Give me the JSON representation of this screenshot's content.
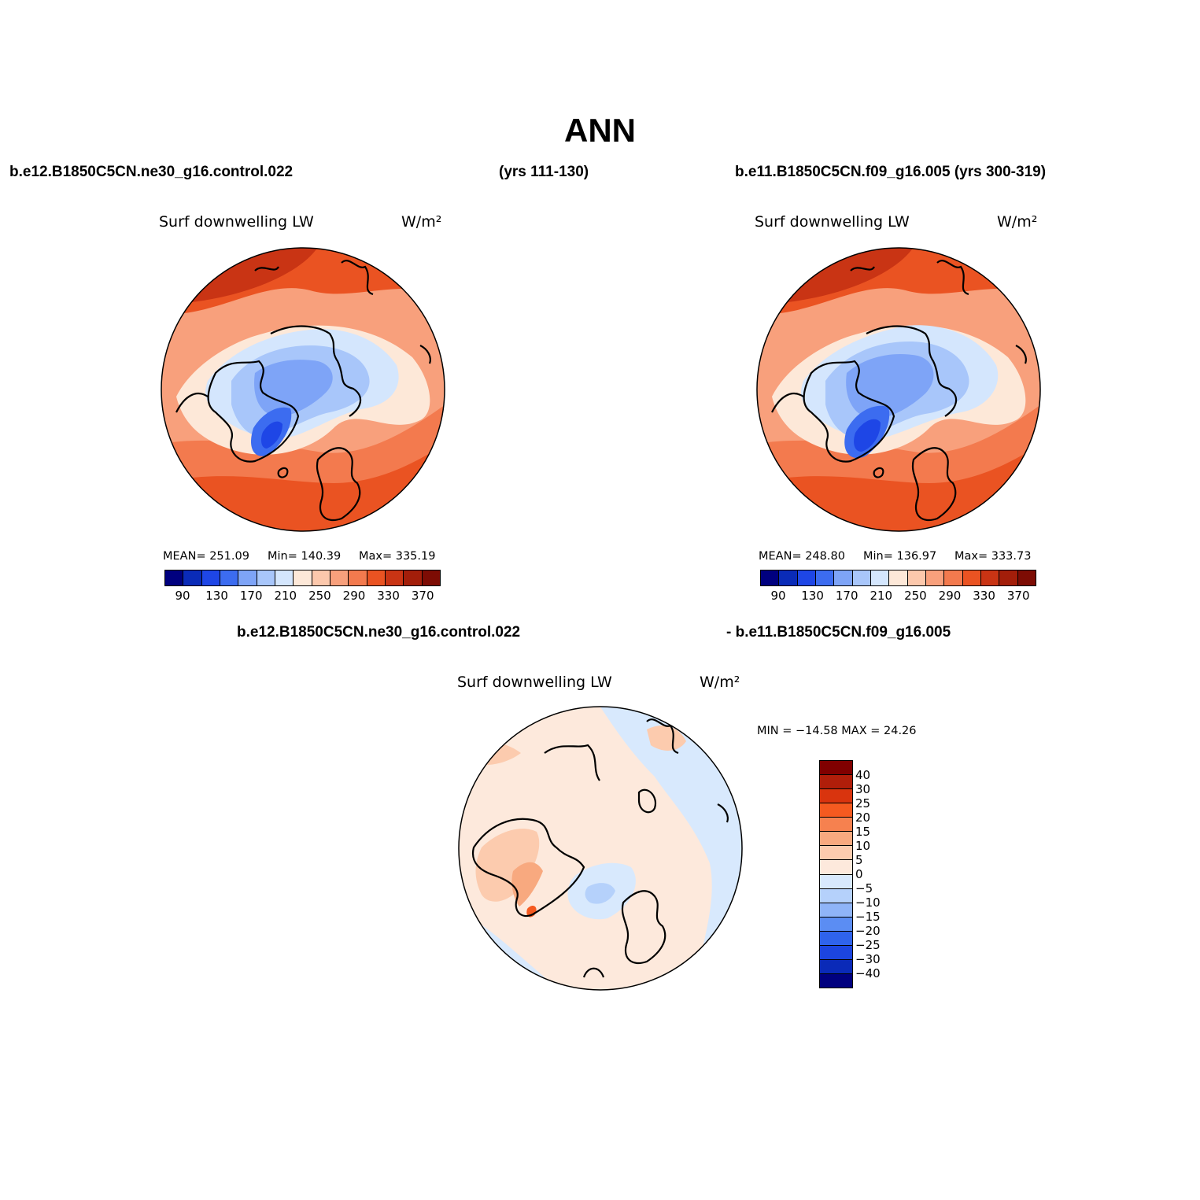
{
  "title": "ANN",
  "case1": "b.e12.B1850C5CN.ne30_g16.control.022",
  "case1_years": "(yrs 111-130)",
  "case2": "b.e11.B1850C5CN.f09_g16.005 (yrs 300-319)",
  "diff_case1": "b.e12.B1850C5CN.ne30_g16.control.022",
  "diff_case2": "- b.e11.B1850C5CN.f09_g16.005",
  "variable": "Surf downwelling LW",
  "units": "W/m²",
  "panel1": {
    "mean": "MEAN= 251.09",
    "min": "Min= 140.39",
    "max": "Max= 335.19"
  },
  "panel2": {
    "mean": "MEAN= 248.80",
    "min": "Min= 136.97",
    "max": "Max= 333.73"
  },
  "diff": {
    "minmax": "MIN = −14.58 MAX =  24.26"
  },
  "abs_colorbar": {
    "colors": [
      "#00007f",
      "#0a2bb8",
      "#1e46e6",
      "#3c6cf0",
      "#7ea4f7",
      "#a8c6fa",
      "#d4e6fd",
      "#fde8d8",
      "#fcc8ac",
      "#f8a07c",
      "#f37a4e",
      "#ea5322",
      "#c93414",
      "#a31e0a",
      "#7d0c04"
    ],
    "ticks": [
      "90",
      "130",
      "170",
      "210",
      "250",
      "290",
      "330",
      "370"
    ]
  },
  "diff_colorbar": {
    "colors": [
      "#800000",
      "#b01e0a",
      "#d9340e",
      "#f55a20",
      "#f6814f",
      "#f8a97f",
      "#fccbae",
      "#fde9dc",
      "#d8e9fd",
      "#b5d1fb",
      "#8fb4f8",
      "#5b8df3",
      "#2f63ec",
      "#1c45e0",
      "#0a2ab8",
      "#00007f"
    ],
    "ticks": [
      "40",
      "30",
      "25",
      "20",
      "15",
      "10",
      "5",
      "0",
      "−5",
      "−10",
      "−15",
      "−20",
      "−25",
      "−30",
      "−40"
    ]
  }
}
